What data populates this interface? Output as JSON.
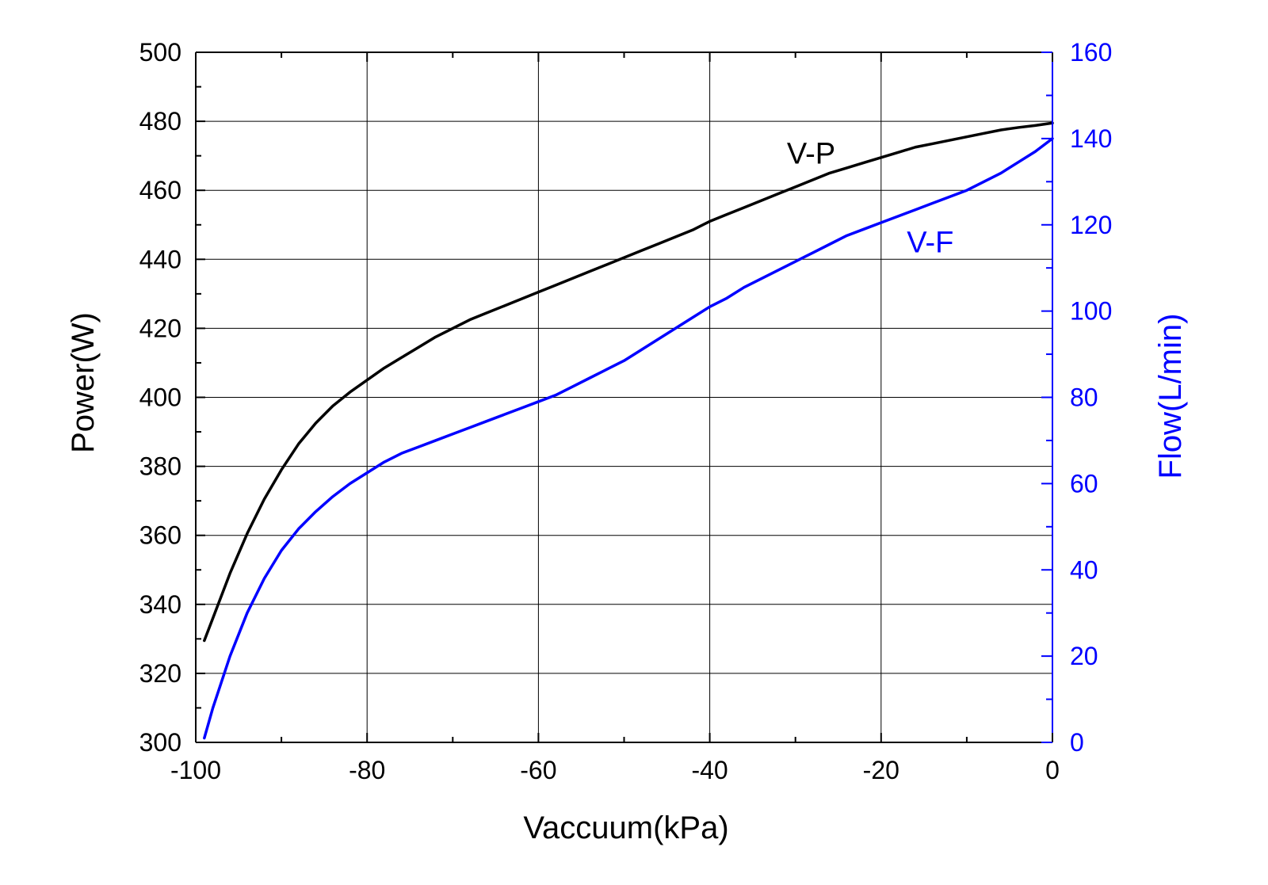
{
  "chart_data": {
    "type": "line",
    "title": "",
    "xlabel": "Vaccuum(kPa)",
    "ylabel_left": "Power(W)",
    "ylabel_right": "Flow(L/min)",
    "xlim": [
      -100,
      0
    ],
    "ylim_left": [
      300,
      500
    ],
    "ylim_right": [
      0,
      160
    ],
    "grid": true,
    "legend": "none",
    "x_ticks": [
      "-100",
      "-80",
      "-60",
      "-40",
      "-20",
      "0"
    ],
    "y_left_ticks": [
      "300",
      "320",
      "340",
      "360",
      "380",
      "400",
      "420",
      "440",
      "460",
      "480",
      "500"
    ],
    "y_right_ticks": [
      "0",
      "20",
      "40",
      "60",
      "80",
      "100",
      "120",
      "140",
      "160"
    ],
    "colors": {
      "left_axis": "#000000",
      "right_axis": "#0000ff",
      "grid": "#000000"
    },
    "series": [
      {
        "name": "V-P",
        "axis": "left",
        "color": "#000000",
        "x": [
          -99,
          -98,
          -96,
          -94,
          -92,
          -90,
          -88,
          -86,
          -84,
          -82,
          -80,
          -78,
          -76,
          -74,
          -72,
          -70,
          -68,
          -66,
          -64,
          -62,
          -60,
          -58,
          -56,
          -54,
          -52,
          -50,
          -48,
          -46,
          -44,
          -42,
          -40,
          -38,
          -36,
          -34,
          -32,
          -30,
          -28,
          -26,
          -24,
          -22,
          -20,
          -18,
          -16,
          -14,
          -12,
          -10,
          -8,
          -6,
          -4,
          -2,
          0
        ],
        "y": [
          329.5,
          336,
          349,
          360.5,
          370.5,
          379,
          386.5,
          392.5,
          397.5,
          401.5,
          405,
          408.5,
          411.5,
          414.5,
          417.5,
          420,
          422.5,
          424.5,
          426.5,
          428.5,
          430.5,
          432.5,
          434.5,
          436.5,
          438.5,
          440.5,
          442.5,
          444.5,
          446.5,
          448.5,
          451,
          453,
          455,
          457,
          459,
          461,
          463,
          465,
          466.5,
          468,
          469.5,
          471,
          472.5,
          473.5,
          474.5,
          475.5,
          476.5,
          477.5,
          478.2,
          478.8,
          479.5
        ]
      },
      {
        "name": "V-F",
        "axis": "right",
        "color": "#0000ff",
        "x": [
          -99,
          -98,
          -96,
          -94,
          -92,
          -90,
          -88,
          -86,
          -84,
          -82,
          -80,
          -78,
          -76,
          -74,
          -72,
          -70,
          -68,
          -66,
          -64,
          -62,
          -60,
          -58,
          -56,
          -54,
          -52,
          -50,
          -48,
          -46,
          -44,
          -42,
          -40,
          -38,
          -36,
          -34,
          -32,
          -30,
          -28,
          -26,
          -24,
          -22,
          -20,
          -18,
          -16,
          -14,
          -12,
          -10,
          -8,
          -6,
          -4,
          -2,
          0
        ],
        "y": [
          1,
          8,
          20,
          30,
          38,
          44.5,
          49.5,
          53.5,
          57,
          60,
          62.5,
          65,
          67,
          68.5,
          70,
          71.5,
          73,
          74.5,
          76,
          77.5,
          79,
          80.5,
          82.5,
          84.5,
          86.5,
          88.5,
          91,
          93.5,
          96,
          98.5,
          101,
          103,
          105.5,
          107.5,
          109.5,
          111.5,
          113.5,
          115.5,
          117.5,
          119,
          120.5,
          122,
          123.5,
          125,
          126.5,
          128,
          130,
          132,
          134.5,
          137,
          140
        ]
      }
    ],
    "annotations": [
      {
        "text": "V-P",
        "x": -31,
        "y_left": 470,
        "color": "#000000"
      },
      {
        "text": "V-F",
        "x": -17,
        "y_left": 440,
        "color": "#0000ff"
      }
    ]
  }
}
